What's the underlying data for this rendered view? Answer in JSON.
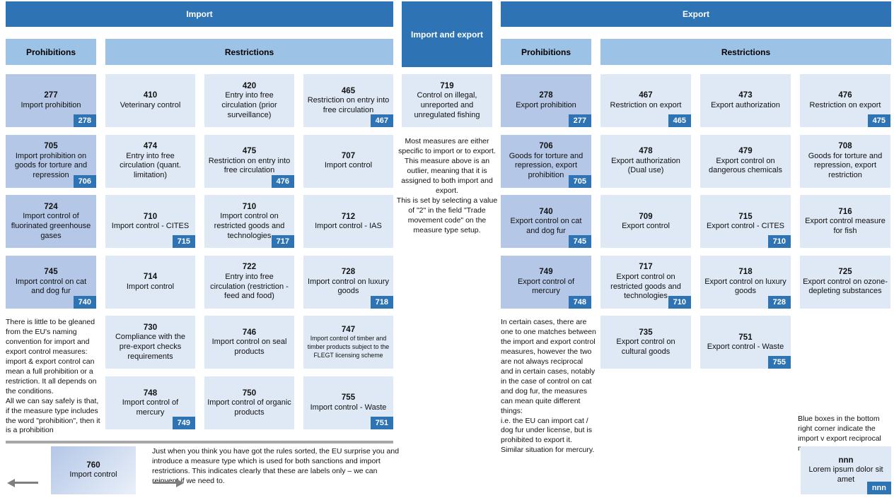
{
  "colors": {
    "header_blue": "#2E74B5",
    "subheader_blue": "#9CC2E5",
    "prohibition_fill": "#B4C7E7",
    "restriction_fill": "#DEE9F5",
    "badge_blue": "#2E74B5",
    "divider_gray": "#A6A6A6",
    "arrow_gray": "#7F7F7F"
  },
  "import": {
    "header": "Import",
    "prohibitions_label": "Prohibitions",
    "restrictions_label": "Restrictions",
    "note": "There is little to be gleaned from the EU's naming convention for import and export control measures: import & export control can mean a full prohibition or a restriction. It all depends on the conditions.\nAll we can say safely is that, if the measure type includes the word \"prohibition\", then it is a prohibition",
    "cells": [
      {
        "code": "277",
        "label": "Import prohibition",
        "badge": "278",
        "variant": "prohibition"
      },
      {
        "code": "410",
        "label": "Veterinary control"
      },
      {
        "code": "420",
        "label": "Entry into free circulation (prior surveillance)"
      },
      {
        "code": "465",
        "label": "Restriction on entry into free circulation",
        "badge": "467"
      },
      {
        "code": "705",
        "label": "Import prohibition on goods for torture and repression",
        "badge": "706",
        "variant": "prohibition"
      },
      {
        "code": "474",
        "label": "Entry into free circulation (quant. limitation)"
      },
      {
        "code": "475",
        "label": "Restriction on entry into free circulation",
        "badge": "476"
      },
      {
        "code": "707",
        "label": "Import control"
      },
      {
        "code": "724",
        "label": "Import control of fluorinated greenhouse gases",
        "variant": "prohibition"
      },
      {
        "code": "710",
        "label": "Import control - CITES",
        "badge": "715"
      },
      {
        "code": "710",
        "label": "Import control on restricted goods and technologies",
        "badge": "717"
      },
      {
        "code": "712",
        "label": "Import control - IAS"
      },
      {
        "code": "745",
        "label": "Import control on cat and dog fur",
        "badge": "740",
        "variant": "prohibition"
      },
      {
        "code": "714",
        "label": "Import control"
      },
      {
        "code": "722",
        "label": "Entry into free circulation (restriction - feed and food)"
      },
      {
        "code": "728",
        "label": "Import control on luxury goods",
        "badge": "718"
      },
      null,
      {
        "code": "730",
        "label": "Compliance with the pre-export checks requirements"
      },
      {
        "code": "746",
        "label": "Import control on seal products"
      },
      {
        "code": "747",
        "label": "Import control of timber and timber products subject to the FLEGT licensing scheme",
        "small": true
      },
      null,
      {
        "code": "748",
        "label": "Import control of mercury",
        "badge": "749"
      },
      {
        "code": "750",
        "label": "Import control of organic products"
      },
      {
        "code": "755",
        "label": "Import control - Waste",
        "badge": "751"
      }
    ]
  },
  "middle": {
    "header": "Import and export",
    "box": {
      "code": "719",
      "label": "Control on illegal, unreported and unregulated fishing"
    },
    "note": "Most measures are either specific to import or to export.\nThis measure above is an outlier, meaning that it is assigned to both import and export.\nThis is set by selecting a value of \"2\" in the field \"Trade movement code\" on the measure type setup."
  },
  "export": {
    "header": "Export",
    "prohibitions_label": "Prohibitions",
    "restrictions_label": "Restrictions",
    "note": "In certain cases, there are one to one matches between the import and export control measures, however the two are not always reciprocal and in certain cases, notably in the case of control on cat and dog fur, the measures can mean quite different things:\ni.e. the EU can import cat / dog fur under license, but is prohibited to export it.\nSimilar situation for mercury.",
    "cells": [
      {
        "code": "278",
        "label": "Export prohibition",
        "badge": "277",
        "variant": "prohibition"
      },
      {
        "code": "467",
        "label": "Restriction on export",
        "badge": "465"
      },
      {
        "code": "473",
        "label": "Export authorization"
      },
      {
        "code": "476",
        "label": "Restriction on export",
        "badge": "475"
      },
      {
        "code": "706",
        "label": "Goods for torture and repression, export prohibition",
        "badge": "705",
        "variant": "prohibition"
      },
      {
        "code": "478",
        "label": "Export authorization (Dual use)"
      },
      {
        "code": "479",
        "label": "Export control on dangerous chemicals"
      },
      {
        "code": "708",
        "label": "Goods for torture and repression, export restriction"
      },
      {
        "code": "740",
        "label": "Export control on cat and dog fur",
        "badge": "745",
        "variant": "prohibition"
      },
      {
        "code": "709",
        "label": "Export control"
      },
      {
        "code": "715",
        "label": "Export control - CITES",
        "badge": "710"
      },
      {
        "code": "716",
        "label": "Export control measure for fish"
      },
      {
        "code": "749",
        "label": "Export control of mercury",
        "badge": "748",
        "variant": "prohibition"
      },
      {
        "code": "717",
        "label": "Export control on restricted goods and technologies",
        "badge": "710"
      },
      {
        "code": "718",
        "label": "Export control on luxury goods",
        "badge": "728"
      },
      {
        "code": "725",
        "label": "Export control on ozone-depleting substances"
      },
      null,
      {
        "code": "735",
        "label": "Export control on cultural goods"
      },
      {
        "code": "751",
        "label": "Export control - Waste",
        "badge": "755"
      },
      null
    ]
  },
  "footer": {
    "note": "Just when you think you have got the rules sorted, the EU surprise you and introduce a measure type which is used for both sanctions and import restrictions. This indicates clearly that these are labels only – we can reinvent if we need to.",
    "box": {
      "code": "760",
      "label": "Import control"
    }
  },
  "legend": {
    "note": "Blue boxes in the bottom right corner indicate the import v export reciprocal measure.",
    "box": {
      "code": "nnn",
      "label": "Lorem ipsum dolor sit amet",
      "badge": "nnn"
    }
  }
}
